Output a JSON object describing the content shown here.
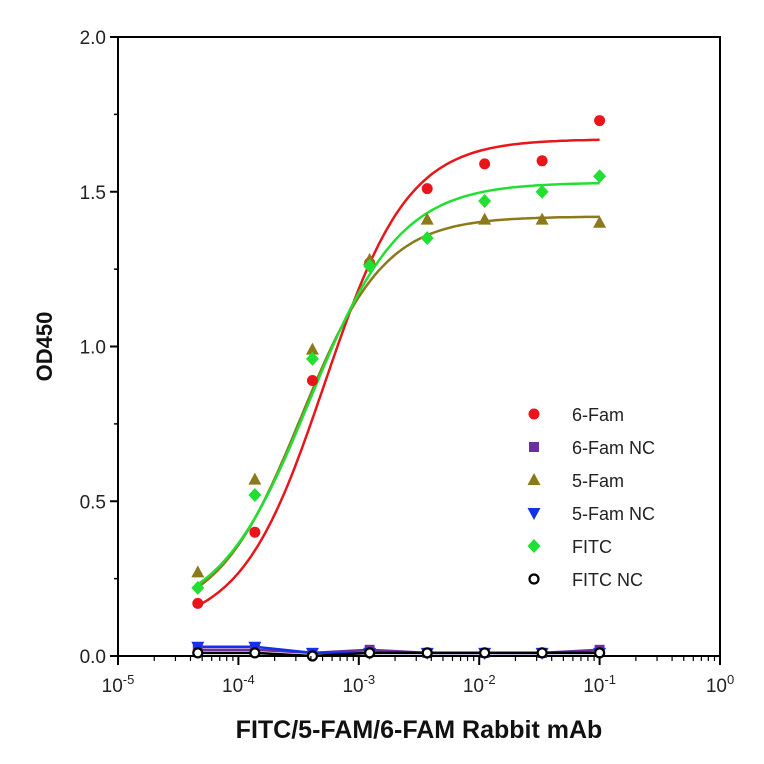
{
  "chart_data": {
    "type": "scatter",
    "xlabel": "FITC/5-FAM/6-FAM Rabbit mAb",
    "ylabel": "OD450",
    "xscale": "log",
    "xlim": [
      1e-05,
      1
    ],
    "ylim": [
      0,
      2.0
    ],
    "x_ticks": [
      1e-05,
      0.0001,
      0.001,
      0.01,
      0.1,
      1
    ],
    "x_tick_labels": [
      {
        "base": "10",
        "exp": "-5"
      },
      {
        "base": "10",
        "exp": "-4"
      },
      {
        "base": "10",
        "exp": "-3"
      },
      {
        "base": "10",
        "exp": "-2"
      },
      {
        "base": "10",
        "exp": "-1"
      },
      {
        "base": "10",
        "exp": "0"
      }
    ],
    "y_ticks": [
      0.0,
      0.5,
      1.0,
      1.5,
      2.0
    ],
    "y_tick_labels": [
      "0.0",
      "0.5",
      "1.0",
      "1.5",
      "2.0"
    ],
    "grid": false,
    "legend_position": "right",
    "x": [
      4.6e-05,
      0.000137,
      0.000412,
      0.00123,
      0.0037,
      0.0111,
      0.0333,
      0.1
    ],
    "series": [
      {
        "name": "6-Fam",
        "marker": "circle",
        "color": "#e8161b",
        "values": [
          0.17,
          0.4,
          0.89,
          1.27,
          1.51,
          1.59,
          1.6,
          1.73
        ],
        "fit": {
          "bottom": 0.09,
          "top": 1.67,
          "ec50": 0.00052,
          "hill": 1.25
        }
      },
      {
        "name": "6-Fam NC",
        "marker": "square",
        "color": "#6b2fa0",
        "values": [
          0.02,
          0.02,
          0.01,
          0.02,
          0.01,
          0.01,
          0.01,
          0.02
        ],
        "fit": null
      },
      {
        "name": "5-Fam",
        "marker": "triangle-up",
        "color": "#8b7a1c",
        "values": [
          0.27,
          0.57,
          0.99,
          1.28,
          1.41,
          1.41,
          1.41,
          1.4
        ],
        "fit": {
          "bottom": 0.12,
          "top": 1.42,
          "ec50": 0.00033,
          "hill": 1.25
        }
      },
      {
        "name": "5-Fam NC",
        "marker": "triangle-down",
        "color": "#1530e6",
        "values": [
          0.03,
          0.03,
          0.01,
          0.01,
          0.01,
          0.01,
          0.01,
          0.01
        ],
        "fit": null
      },
      {
        "name": "FITC",
        "marker": "diamond",
        "color": "#22e033",
        "values": [
          0.22,
          0.52,
          0.96,
          1.26,
          1.35,
          1.47,
          1.5,
          1.55
        ],
        "fit": {
          "bottom": 0.12,
          "top": 1.53,
          "ec50": 0.00039,
          "hill": 1.15
        }
      },
      {
        "name": "FITC NC",
        "marker": "open-circle",
        "color": "#000000",
        "values": [
          0.01,
          0.01,
          0.0,
          0.01,
          0.01,
          0.01,
          0.01,
          0.01
        ],
        "fit": null
      }
    ]
  }
}
